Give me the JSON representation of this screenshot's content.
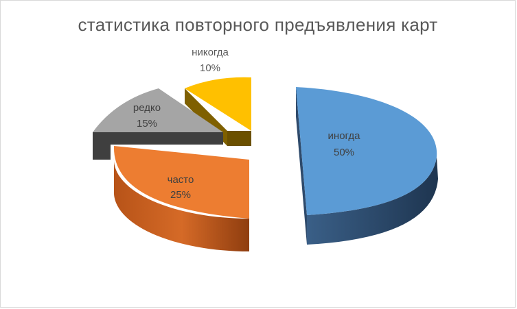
{
  "chart_data": {
    "type": "pie",
    "title": "статистика повторного предъявления карт",
    "categories": [
      "иногда",
      "часто",
      "редко",
      "никогда"
    ],
    "values": [
      50,
      25,
      15,
      10
    ],
    "value_labels": [
      "50%",
      "25%",
      "15%",
      "10%"
    ],
    "colors": [
      "#5b9bd5",
      "#ed7d31",
      "#a5a5a5",
      "#ffc000"
    ],
    "exploded": true,
    "legend": "none"
  }
}
